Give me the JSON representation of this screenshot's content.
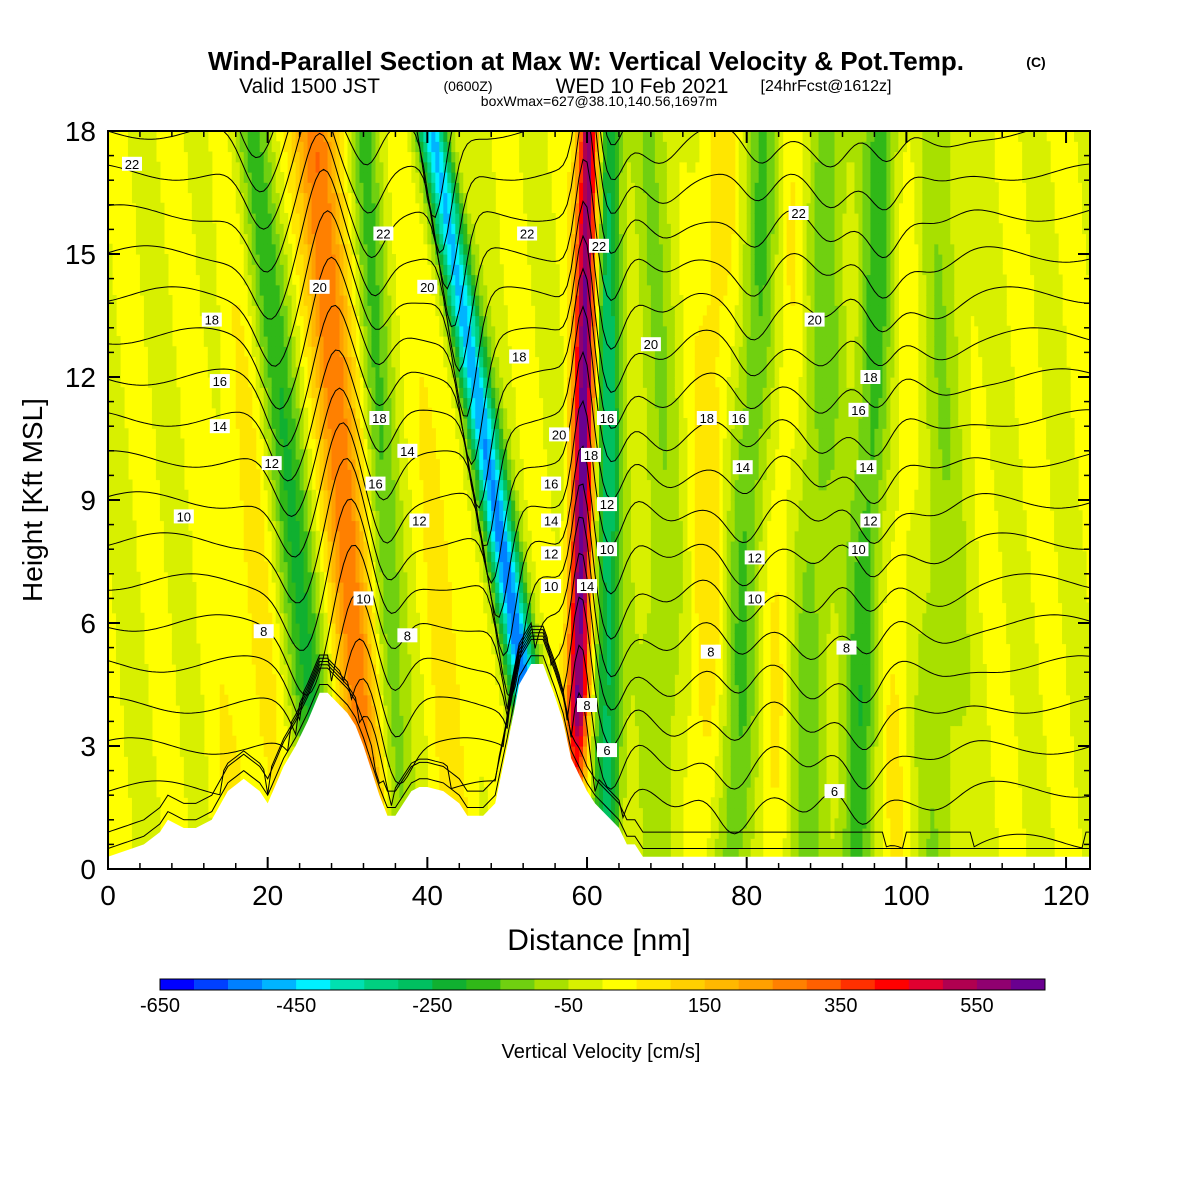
{
  "header": {
    "title": "Wind-Parallel Section at Max W: Vertical Velocity & Pot.Temp.",
    "title_mark": "(C)",
    "valid_main": "Valid 1500 JST",
    "valid_zulu": "(0600Z)",
    "valid_date": "WED 10 Feb 2021",
    "forecast": "[24hrFcst@1612z]",
    "box_info": "boxWmax=627@38.10,140.56,1697m"
  },
  "colorbar": {
    "label": "Vertical Velocity [cm/s]",
    "tick_labels": [
      "-650",
      "-450",
      "-250",
      "-50",
      "150",
      "350",
      "550"
    ],
    "tick_values": [
      -650,
      -450,
      -250,
      -50,
      150,
      350,
      550
    ],
    "min": -650,
    "max": 650,
    "colors": [
      "#0000ff",
      "#0040ff",
      "#0080ff",
      "#00b4ff",
      "#00f0ff",
      "#00e0b0",
      "#00d080",
      "#00c060",
      "#10b030",
      "#30b818",
      "#70d010",
      "#a8e000",
      "#d8f000",
      "#ffff00",
      "#ffe600",
      "#ffd000",
      "#ffb800",
      "#ffa000",
      "#ff8000",
      "#ff6000",
      "#ff3000",
      "#ff0000",
      "#e00030",
      "#b00050",
      "#900070",
      "#6a0090"
    ]
  },
  "chart_data": {
    "type": "heatmap",
    "title": "Wind-Parallel Section at Max W: Vertical Velocity & Pot.Temp.",
    "xlabel": "Distance [nm]",
    "ylabel": "Height [Kft MSL]",
    "xlim": [
      0,
      123
    ],
    "ylim": [
      0,
      18
    ],
    "x_ticks": [
      0,
      20,
      40,
      60,
      80,
      100,
      120
    ],
    "y_ticks": [
      0,
      3,
      6,
      9,
      12,
      15,
      18
    ],
    "field": "vertical velocity (cm/s), filled contours",
    "contour_field": "potential temperature (C), contour interval 1",
    "terrain_profile": {
      "x": [
        0,
        4.5,
        6.5,
        7.5,
        9.5,
        11,
        13,
        15,
        17,
        19,
        20,
        22,
        23.5,
        25,
        26.5,
        27.5,
        29,
        30,
        31,
        32,
        33,
        34,
        35,
        36,
        37,
        38,
        39,
        40,
        42,
        44,
        45,
        47,
        48.5,
        50,
        51.5,
        53,
        54.5,
        56,
        57,
        58,
        60,
        61,
        62,
        63,
        64,
        65,
        66,
        67,
        68
      ],
      "y": [
        0.3,
        0.6,
        0.9,
        1.2,
        1.0,
        1.0,
        1.2,
        1.9,
        2.2,
        1.9,
        1.6,
        2.5,
        3.0,
        3.6,
        4.3,
        4.3,
        4.0,
        3.8,
        3.5,
        3.0,
        2.4,
        1.8,
        1.3,
        1.3,
        1.6,
        1.9,
        2.0,
        2.0,
        1.9,
        1.6,
        1.3,
        1.3,
        1.6,
        3.0,
        4.5,
        5.0,
        5.0,
        4.2,
        3.6,
        2.7,
        1.9,
        1.6,
        1.4,
        1.2,
        1.0,
        0.6,
        0.6,
        0.3,
        0.3
      ]
    },
    "theta_labels": [
      {
        "x": 3,
        "y": 17.2,
        "text": "22"
      },
      {
        "x": 34.5,
        "y": 15.5,
        "text": "22"
      },
      {
        "x": 52.5,
        "y": 15.5,
        "text": "22"
      },
      {
        "x": 61.5,
        "y": 15.2,
        "text": "22"
      },
      {
        "x": 86.5,
        "y": 16.0,
        "text": "22"
      },
      {
        "x": 26.5,
        "y": 14.2,
        "text": "20"
      },
      {
        "x": 40,
        "y": 14.2,
        "text": "20"
      },
      {
        "x": 68,
        "y": 12.8,
        "text": "20"
      },
      {
        "x": 88.5,
        "y": 13.4,
        "text": "20"
      },
      {
        "x": 56.5,
        "y": 10.6,
        "text": "20"
      },
      {
        "x": 13,
        "y": 13.4,
        "text": "18"
      },
      {
        "x": 51.5,
        "y": 12.5,
        "text": "18"
      },
      {
        "x": 34,
        "y": 11.0,
        "text": "18"
      },
      {
        "x": 75,
        "y": 11.0,
        "text": "18"
      },
      {
        "x": 95.5,
        "y": 12.0,
        "text": "18"
      },
      {
        "x": 60.5,
        "y": 10.1,
        "text": "18"
      },
      {
        "x": 14,
        "y": 11.9,
        "text": "16"
      },
      {
        "x": 62.5,
        "y": 11.0,
        "text": "16"
      },
      {
        "x": 79,
        "y": 11.0,
        "text": "16"
      },
      {
        "x": 94,
        "y": 11.2,
        "text": "16"
      },
      {
        "x": 33.5,
        "y": 9.4,
        "text": "16"
      },
      {
        "x": 55.5,
        "y": 9.4,
        "text": "16"
      },
      {
        "x": 14,
        "y": 10.8,
        "text": "14"
      },
      {
        "x": 37.5,
        "y": 10.2,
        "text": "14"
      },
      {
        "x": 79.5,
        "y": 9.8,
        "text": "14"
      },
      {
        "x": 95,
        "y": 9.8,
        "text": "14"
      },
      {
        "x": 55.5,
        "y": 8.5,
        "text": "14"
      },
      {
        "x": 60,
        "y": 6.9,
        "text": "14"
      },
      {
        "x": 20.5,
        "y": 9.9,
        "text": "12"
      },
      {
        "x": 39,
        "y": 8.5,
        "text": "12"
      },
      {
        "x": 62.5,
        "y": 8.9,
        "text": "12"
      },
      {
        "x": 81,
        "y": 7.6,
        "text": "12"
      },
      {
        "x": 95.5,
        "y": 8.5,
        "text": "12"
      },
      {
        "x": 55.5,
        "y": 7.7,
        "text": "12"
      },
      {
        "x": 9.5,
        "y": 8.6,
        "text": "10"
      },
      {
        "x": 32,
        "y": 6.6,
        "text": "10"
      },
      {
        "x": 62.5,
        "y": 7.8,
        "text": "10"
      },
      {
        "x": 81,
        "y": 6.6,
        "text": "10"
      },
      {
        "x": 94,
        "y": 7.8,
        "text": "10"
      },
      {
        "x": 55.5,
        "y": 6.9,
        "text": "10"
      },
      {
        "x": 19.5,
        "y": 5.8,
        "text": "8"
      },
      {
        "x": 37.5,
        "y": 5.7,
        "text": "8"
      },
      {
        "x": 60,
        "y": 4.0,
        "text": "8"
      },
      {
        "x": 75.5,
        "y": 5.3,
        "text": "8"
      },
      {
        "x": 92.5,
        "y": 5.4,
        "text": "8"
      },
      {
        "x": 62.5,
        "y": 2.9,
        "text": "6"
      },
      {
        "x": 91,
        "y": 1.9,
        "text": "6"
      }
    ]
  }
}
